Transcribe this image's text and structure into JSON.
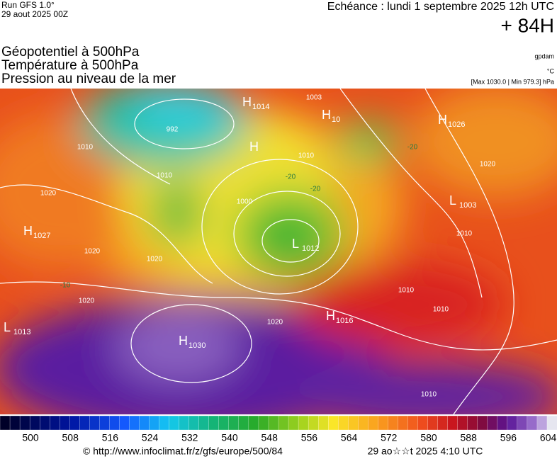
{
  "header": {
    "run": "Run GFS 1.0°",
    "date": "29 aout 2025 00Z",
    "echeance": "Echéance : lundi 1 septembre 2025 12h UTC",
    "leadtime": "+ 84H",
    "titles": [
      "Géopotentiel à 500hPa",
      "Température à 500hPa",
      "Pression au niveau de la mer"
    ],
    "units": [
      "gpdam",
      "°C",
      "[Max 1030.0 | Min 979.3] hPa"
    ]
  },
  "pressure_centers": [
    {
      "type": "H",
      "value": "1014"
    },
    {
      "type": "H",
      "value": "10"
    },
    {
      "type": "H",
      "value": "1026"
    },
    {
      "type": "L",
      "value": "1003"
    },
    {
      "type": "H",
      "value": "1027"
    },
    {
      "type": "L",
      "value": "1013"
    },
    {
      "type": "L",
      "value": "1012"
    },
    {
      "type": "H",
      "value": "1016"
    },
    {
      "type": "H",
      "value": "1030"
    },
    {
      "type": "H",
      "value": ""
    }
  ],
  "isobar_labels": [
    "1003",
    "992",
    "1010",
    "1010",
    "1020",
    "1020",
    "1020",
    "1020",
    "1020",
    "1010",
    "1010",
    "1010",
    "1010",
    "1020",
    "1000",
    "1010"
  ],
  "temperature_labels": [
    "-20",
    "-20",
    "-20",
    "-10"
  ],
  "scale": {
    "labels": [
      "500",
      "508",
      "516",
      "524",
      "532",
      "540",
      "548",
      "556",
      "564",
      "572",
      "580",
      "588",
      "596",
      "604"
    ]
  },
  "footer": {
    "url": "© http://www.infoclimat.fr/z/gfs/europe/500/84",
    "timestamp": "29 ao☆☆t 2025  4:10 UTC"
  }
}
